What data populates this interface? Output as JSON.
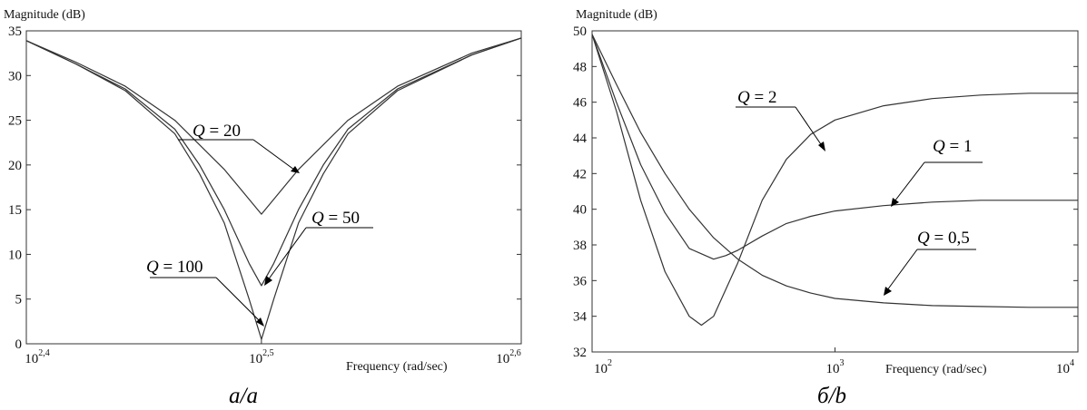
{
  "chart_data": [
    {
      "id": "a",
      "type": "line",
      "caption": "a/a",
      "ylabel": "Magnitude (dB)",
      "xlabel": "Frequency (rad/sec)",
      "x_scale": "log10",
      "xlim": [
        2.4,
        2.6
      ],
      "ylim": [
        0,
        35
      ],
      "yticks": [
        0,
        5,
        10,
        15,
        20,
        25,
        30,
        35
      ],
      "xticks": [
        {
          "base": "10",
          "exp": "2,4",
          "value": 2.4
        },
        {
          "base": "10",
          "exp": "2,5",
          "value": 2.495
        },
        {
          "base": "10",
          "exp": "2,6",
          "value": 2.6
        }
      ],
      "series": [
        {
          "name": "Q = 20",
          "x": [
            2.4,
            2.42,
            2.44,
            2.46,
            2.48,
            2.495,
            2.51,
            2.53,
            2.55,
            2.58,
            2.6
          ],
          "y": [
            33.9,
            31.5,
            28.8,
            25.0,
            19.5,
            14.5,
            19.5,
            25.0,
            28.8,
            32.5,
            34.2
          ]
        },
        {
          "name": "Q = 50",
          "x": [
            2.4,
            2.42,
            2.44,
            2.46,
            2.47,
            2.48,
            2.49,
            2.495,
            2.5,
            2.51,
            2.52,
            2.53,
            2.55,
            2.58,
            2.6
          ],
          "y": [
            33.9,
            31.3,
            28.5,
            24.0,
            20.0,
            15.0,
            9.0,
            6.5,
            9.0,
            15.0,
            20.0,
            24.0,
            28.5,
            32.3,
            34.2
          ]
        },
        {
          "name": "Q = 100",
          "x": [
            2.4,
            2.42,
            2.44,
            2.46,
            2.47,
            2.48,
            2.49,
            2.495,
            2.5,
            2.51,
            2.52,
            2.53,
            2.55,
            2.58,
            2.6
          ],
          "y": [
            33.9,
            31.3,
            28.3,
            23.5,
            19.0,
            13.5,
            5.0,
            0.5,
            5.0,
            13.5,
            19.0,
            23.5,
            28.3,
            32.3,
            34.2
          ]
        }
      ],
      "annotations": [
        "Q = 20",
        "Q = 50",
        "Q = 100"
      ]
    },
    {
      "id": "b",
      "type": "line",
      "caption": "б/b",
      "ylabel": "Magnitude (dB)",
      "xlabel": "Frequency (rad/sec)",
      "x_scale": "log10",
      "xlim": [
        2,
        4
      ],
      "ylim": [
        32,
        50
      ],
      "yticks": [
        32,
        34,
        36,
        38,
        40,
        42,
        44,
        46,
        48,
        50
      ],
      "xticks": [
        {
          "base": "10",
          "exp": "2",
          "value": 2
        },
        {
          "base": "10",
          "exp": "3",
          "value": 3
        },
        {
          "base": "10",
          "exp": "4",
          "value": 4
        }
      ],
      "series": [
        {
          "name": "Q = 2",
          "x": [
            2.0,
            2.1,
            2.2,
            2.3,
            2.4,
            2.45,
            2.5,
            2.6,
            2.7,
            2.8,
            2.9,
            3.0,
            3.2,
            3.4,
            3.6,
            3.8,
            4.0
          ],
          "y": [
            49.8,
            45.5,
            40.5,
            36.5,
            34.0,
            33.5,
            34.0,
            37.0,
            40.5,
            42.8,
            44.2,
            45.0,
            45.8,
            46.2,
            46.4,
            46.5,
            46.5
          ]
        },
        {
          "name": "Q = 1",
          "x": [
            2.0,
            2.1,
            2.2,
            2.3,
            2.4,
            2.45,
            2.5,
            2.55,
            2.6,
            2.7,
            2.8,
            2.9,
            3.0,
            3.2,
            3.4,
            3.6,
            3.8,
            4.0
          ],
          "y": [
            49.8,
            46.0,
            42.5,
            39.8,
            37.8,
            37.5,
            37.2,
            37.4,
            37.7,
            38.5,
            39.2,
            39.6,
            39.9,
            40.2,
            40.4,
            40.5,
            40.5,
            40.5
          ]
        },
        {
          "name": "Q = 0,5",
          "x": [
            2.0,
            2.1,
            2.2,
            2.3,
            2.4,
            2.5,
            2.6,
            2.7,
            2.8,
            2.9,
            3.0,
            3.2,
            3.4,
            3.6,
            3.8,
            4.0
          ],
          "y": [
            49.8,
            47.0,
            44.3,
            42.0,
            40.0,
            38.4,
            37.2,
            36.3,
            35.7,
            35.3,
            35.0,
            34.75,
            34.6,
            34.55,
            34.5,
            34.5
          ]
        }
      ],
      "annotations": [
        "Q = 2",
        "Q = 1",
        "Q = 0,5"
      ]
    }
  ]
}
